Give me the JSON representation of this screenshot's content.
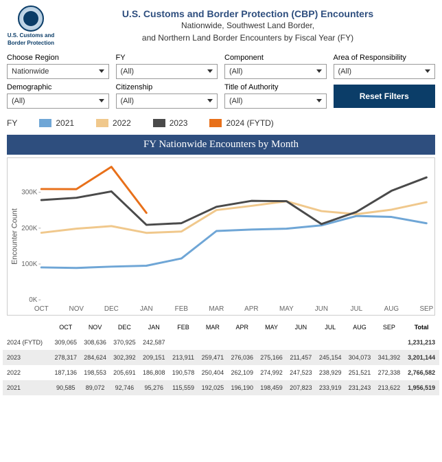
{
  "header": {
    "title": "U.S. Customs and Border Protection (CBP) Encounters",
    "subtitle1": "Nationwide, Southwest Land Border,",
    "subtitle2": "and Northern Land Border Encounters by Fiscal Year (FY)",
    "logo_text1": "U.S. Customs and",
    "logo_text2": "Border Protection"
  },
  "filters": {
    "region": {
      "label": "Choose Region",
      "value": "Nationwide"
    },
    "fy": {
      "label": "FY",
      "value": "(All)"
    },
    "component": {
      "label": "Component",
      "value": "(All)"
    },
    "aor": {
      "label": "Area of Responsibility",
      "value": "(All)"
    },
    "demographic": {
      "label": "Demographic",
      "value": "(All)"
    },
    "citizenship": {
      "label": "Citizenship",
      "value": "(All)"
    },
    "authority": {
      "label": "Title of Authority",
      "value": "(All)"
    },
    "reset": "Reset Filters"
  },
  "legend": {
    "label": "FY",
    "items": [
      {
        "name": "2021",
        "color": "#6fa6d6"
      },
      {
        "name": "2022",
        "color": "#f0c88c"
      },
      {
        "name": "2023",
        "color": "#4a4a4a"
      },
      {
        "name": "2024 (FYTD)",
        "color": "#e8701a"
      }
    ]
  },
  "chart": {
    "title": "FY Nationwide Encounters by Month",
    "ylabel": "Encounter Count",
    "months": [
      "OCT",
      "NOV",
      "DEC",
      "JAN",
      "FEB",
      "MAR",
      "APR",
      "MAY",
      "JUN",
      "JUL",
      "AUG",
      "SEP"
    ],
    "ylim": [
      0,
      380000
    ],
    "yticks": [
      0,
      100000,
      200000,
      300000
    ],
    "ytick_labels": [
      "0K",
      "100K",
      "200K",
      "300K"
    ],
    "line_width": 3,
    "label_fontsize": 10,
    "background": "#ffffff",
    "grid": false,
    "series": {
      "y2021": {
        "color": "#6fa6d6",
        "values": [
          90585,
          89072,
          92746,
          95276,
          115559,
          192025,
          196190,
          198459,
          207823,
          233919,
          231243,
          213622
        ]
      },
      "y2022": {
        "color": "#f0c88c",
        "values": [
          187136,
          198553,
          205691,
          186808,
          190578,
          250404,
          262109,
          274992,
          247523,
          238929,
          251521,
          272338
        ]
      },
      "y2023": {
        "color": "#4a4a4a",
        "values": [
          278317,
          284624,
          302392,
          209151,
          213911,
          259471,
          276036,
          275166,
          211457,
          245154,
          304073,
          341392
        ]
      },
      "y2024": {
        "color": "#e8701a",
        "values": [
          309065,
          308636,
          370925,
          242587
        ]
      }
    }
  },
  "table": {
    "months": [
      "OCT",
      "NOV",
      "DEC",
      "JAN",
      "FEB",
      "MAR",
      "APR",
      "MAY",
      "JUN",
      "JUL",
      "AUG",
      "SEP"
    ],
    "total_header": "Total",
    "rows": [
      {
        "label": "2024 (FYTD)",
        "cells": [
          "309,065",
          "308,636",
          "370,925",
          "242,587",
          "",
          "",
          "",
          "",
          "",
          "",
          "",
          ""
        ],
        "total": "1,231,213"
      },
      {
        "label": "2023",
        "cells": [
          "278,317",
          "284,624",
          "302,392",
          "209,151",
          "213,911",
          "259,471",
          "276,036",
          "275,166",
          "211,457",
          "245,154",
          "304,073",
          "341,392"
        ],
        "total": "3,201,144"
      },
      {
        "label": "2022",
        "cells": [
          "187,136",
          "198,553",
          "205,691",
          "186,808",
          "190,578",
          "250,404",
          "262,109",
          "274,992",
          "247,523",
          "238,929",
          "251,521",
          "272,338"
        ],
        "total": "2,766,582"
      },
      {
        "label": "2021",
        "cells": [
          "90,585",
          "89,072",
          "92,746",
          "95,276",
          "115,559",
          "192,025",
          "196,190",
          "198,459",
          "207,823",
          "233,919",
          "231,243",
          "213,622"
        ],
        "total": "1,956,519"
      }
    ]
  }
}
